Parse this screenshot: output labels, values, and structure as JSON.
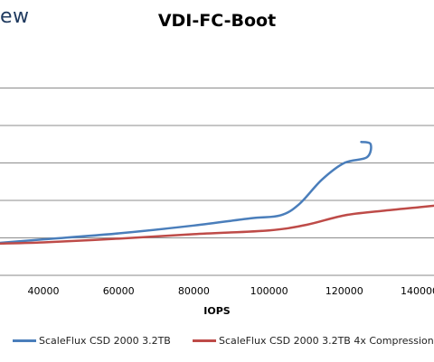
{
  "brand": {
    "logo_text": "ew"
  },
  "chart_data": {
    "type": "line",
    "title": "VDI-FC-Boot",
    "xlabel": "IOPS",
    "ylabel": "",
    "x_ticks": [
      40000,
      60000,
      80000,
      100000,
      120000,
      140000
    ],
    "grid": true,
    "legend": "bottom",
    "series": [
      {
        "name": "ScaleFlux CSD 2000 3.2TB",
        "color": "#4a7ebb",
        "points": [
          [
            25000,
            0.84
          ],
          [
            40000,
            0.96
          ],
          [
            60000,
            1.12
          ],
          [
            80000,
            1.33
          ],
          [
            95000,
            1.52
          ],
          [
            103000,
            1.6
          ],
          [
            108000,
            1.9
          ],
          [
            114000,
            2.55
          ],
          [
            120000,
            3.0
          ],
          [
            126000,
            3.15
          ],
          [
            127000,
            3.5
          ],
          [
            124500,
            3.56
          ]
        ]
      },
      {
        "name": "ScaleFlux CSD 2000 3.2TB 4x Compression",
        "color": "#be4b48",
        "points": [
          [
            25000,
            0.84
          ],
          [
            40000,
            0.88
          ],
          [
            60000,
            0.98
          ],
          [
            80000,
            1.1
          ],
          [
            100000,
            1.2
          ],
          [
            110000,
            1.35
          ],
          [
            120000,
            1.6
          ],
          [
            130000,
            1.72
          ],
          [
            140000,
            1.82
          ],
          [
            146000,
            1.88
          ]
        ]
      }
    ]
  }
}
